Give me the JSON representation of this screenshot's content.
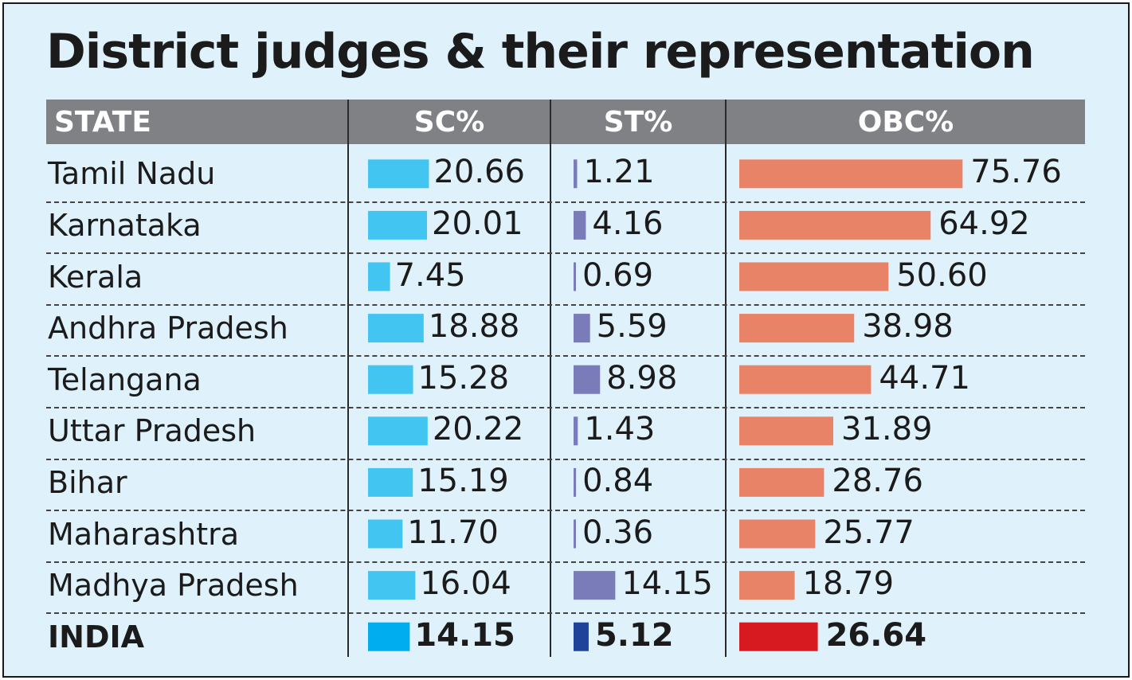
{
  "title": "District judges & their representation",
  "headers": {
    "state": "STATE",
    "sc": "SC%",
    "st": "ST%",
    "obc": "OBC%"
  },
  "colors": {
    "sc": "#42c6f1",
    "st": "#7a7bb9",
    "obc": "#e98367",
    "india_sc": "#00aeef",
    "india_st": "#20439a",
    "india_obc": "#d71920",
    "header_bg": "#808184",
    "background": "#dff1fb"
  },
  "chart_data": {
    "type": "table",
    "title": "District judges & their representation",
    "columns": [
      "STATE",
      "SC%",
      "ST%",
      "OBC%"
    ],
    "rows": [
      {
        "state": "Tamil Nadu",
        "sc": "20.66",
        "st": "1.21",
        "obc": "75.76"
      },
      {
        "state": "Karnataka",
        "sc": "20.01",
        "st": "4.16",
        "obc": "64.92"
      },
      {
        "state": "Kerala",
        "sc": "7.45",
        "st": "0.69",
        "obc": "50.60"
      },
      {
        "state": "Andhra Pradesh",
        "sc": "18.88",
        "st": "5.59",
        "obc": "38.98"
      },
      {
        "state": "Telangana",
        "sc": "15.28",
        "st": "8.98",
        "obc": "44.71"
      },
      {
        "state": "Uttar Pradesh",
        "sc": "20.22",
        "st": "1.43",
        "obc": "31.89"
      },
      {
        "state": "Bihar",
        "sc": "15.19",
        "st": "0.84",
        "obc": "28.76"
      },
      {
        "state": "Maharashtra",
        "sc": "11.70",
        "st": "0.36",
        "obc": "25.77"
      },
      {
        "state": "Madhya Pradesh",
        "sc": "16.04",
        "st": "14.15",
        "obc": "18.79"
      }
    ],
    "total": {
      "state": "INDIA",
      "sc": "14.15",
      "st": "5.12",
      "obc": "26.64"
    }
  }
}
